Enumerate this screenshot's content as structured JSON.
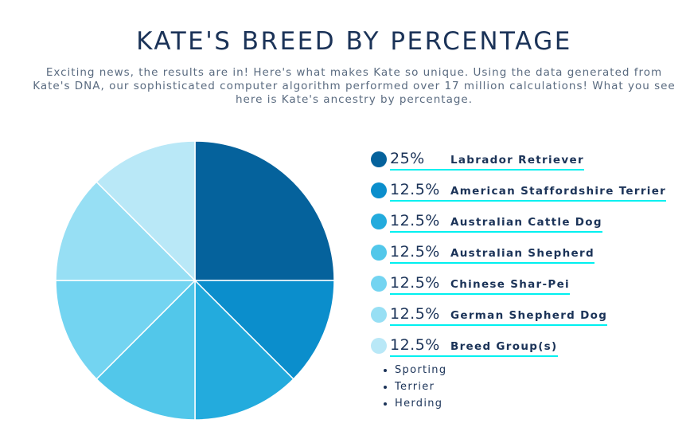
{
  "header": {
    "title": "KATE'S BREED BY PERCENTAGE",
    "subtitle": "Exciting news, the results are in! Here's what makes Kate so unique. Using the data generated from Kate's DNA, our sophisticated computer algorithm performed over 17 million calculations! What you see here is Kate's ancestry by percentage."
  },
  "chart_data": {
    "type": "pie",
    "categories": [
      "Labrador Retriever",
      "American Staffordshire Terrier",
      "Australian Cattle Dog",
      "Australian Shepherd",
      "Chinese Shar-Pei",
      "German Shepherd Dog",
      "Breed Group(s)"
    ],
    "values": [
      25,
      12.5,
      12.5,
      12.5,
      12.5,
      12.5,
      12.5
    ],
    "labels": [
      "25%",
      "12.5%",
      "12.5%",
      "12.5%",
      "12.5%",
      "12.5%",
      "12.5%"
    ],
    "colors": [
      "#05629c",
      "#0b8ecc",
      "#23abdd",
      "#52c7ea",
      "#73d4f1",
      "#97dff4",
      "#b9e8f7"
    ],
    "legend": "right"
  },
  "breed_groups": [
    "Sporting",
    "Terrier",
    "Herding"
  ]
}
